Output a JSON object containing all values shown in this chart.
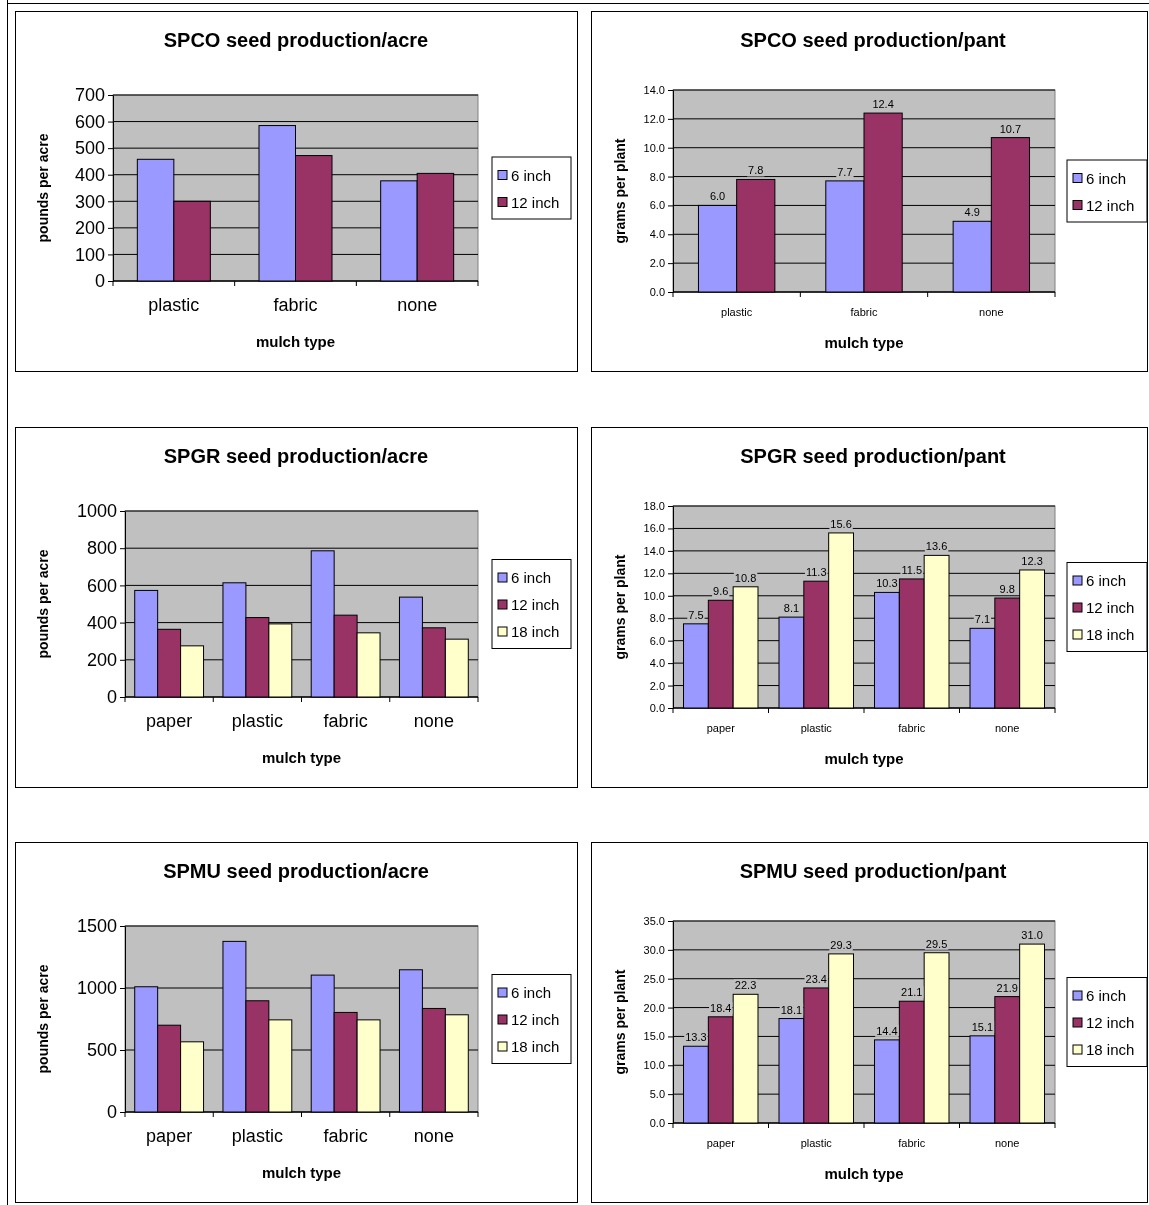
{
  "chart_data": [
    {
      "type": "bar",
      "title": "SPCO seed production/acre",
      "xlabel": "mulch type",
      "ylabel": "pounds per acre",
      "categories": [
        "plastic",
        "fabric",
        "none"
      ],
      "series": [
        {
          "name": "6 inch",
          "color": "#9999ff",
          "values": [
            458,
            585,
            377
          ]
        },
        {
          "name": "12 inch",
          "color": "#993366",
          "values": [
            300,
            472,
            405
          ]
        }
      ],
      "ylim": [
        0,
        700
      ],
      "yticks": [
        0,
        100,
        200,
        300,
        400,
        500,
        600,
        700
      ],
      "grid": "y",
      "legend": "right"
    },
    {
      "type": "bar",
      "title": "SPCO seed production/pant",
      "xlabel": "mulch type",
      "ylabel": "grams per plant",
      "categories": [
        "plastic",
        "fabric",
        "none"
      ],
      "series": [
        {
          "name": "6 inch",
          "color": "#9999ff",
          "values": [
            6.0,
            7.7,
            4.9
          ],
          "value_labels": [
            "6.0",
            "7.7",
            "4.9"
          ]
        },
        {
          "name": "12 inch",
          "color": "#993366",
          "values": [
            7.8,
            12.4,
            10.7
          ],
          "value_labels": [
            "7.8",
            "12.4",
            "10.7"
          ]
        }
      ],
      "ylim": [
        0,
        14
      ],
      "yticks": [
        {
          "value": 0,
          "label": "0.0"
        },
        {
          "value": 2,
          "label": "2.0"
        },
        {
          "value": 4,
          "label": "4.0"
        },
        {
          "value": 6,
          "label": "6.0"
        },
        {
          "value": 8,
          "label": "8.0"
        },
        {
          "value": 10,
          "label": "10.0"
        },
        {
          "value": 12,
          "label": "12.0"
        },
        {
          "value": 14,
          "label": "14.0"
        }
      ],
      "grid": "y",
      "legend": "right"
    },
    {
      "type": "bar",
      "title": "SPGR seed production/acre",
      "xlabel": "mulch type",
      "ylabel": "pounds per acre",
      "categories": [
        "paper",
        "plastic",
        "fabric",
        "none"
      ],
      "series": [
        {
          "name": "6 inch",
          "color": "#9999ff",
          "values": [
            573,
            614,
            786,
            537
          ]
        },
        {
          "name": "12 inch",
          "color": "#993366",
          "values": [
            364,
            427,
            440,
            372
          ]
        },
        {
          "name": "18 inch",
          "color": "#ffffcc",
          "values": [
            275,
            393,
            345,
            311
          ]
        }
      ],
      "ylim": [
        0,
        1000
      ],
      "yticks": [
        0,
        200,
        400,
        600,
        800,
        1000
      ],
      "grid": "y",
      "legend": "right"
    },
    {
      "type": "bar",
      "title": "SPGR seed production/pant",
      "xlabel": "mulch type",
      "ylabel": "grams per plant",
      "categories": [
        "paper",
        "plastic",
        "fabric",
        "none"
      ],
      "series": [
        {
          "name": "6 inch",
          "color": "#9999ff",
          "values": [
            7.5,
            8.1,
            10.3,
            7.1
          ],
          "value_labels": [
            "7.5",
            "8.1",
            "10.3",
            "7.1"
          ]
        },
        {
          "name": "12 inch",
          "color": "#993366",
          "values": [
            9.6,
            11.3,
            11.5,
            9.8
          ],
          "value_labels": [
            "9.6",
            "11.3",
            "11.5",
            "9.8"
          ]
        },
        {
          "name": "18 inch",
          "color": "#ffffcc",
          "values": [
            10.8,
            15.6,
            13.6,
            12.3
          ],
          "value_labels": [
            "10.8",
            "15.6",
            "13.6",
            "12.3"
          ]
        }
      ],
      "ylim": [
        0,
        18
      ],
      "yticks": [
        {
          "value": 0,
          "label": "0.0"
        },
        {
          "value": 2,
          "label": "2.0"
        },
        {
          "value": 4,
          "label": "4.0"
        },
        {
          "value": 6,
          "label": "6.0"
        },
        {
          "value": 8,
          "label": "8.0"
        },
        {
          "value": 10,
          "label": "10.0"
        },
        {
          "value": 12,
          "label": "12.0"
        },
        {
          "value": 14,
          "label": "14.0"
        },
        {
          "value": 16,
          "label": "16.0"
        },
        {
          "value": 18,
          "label": "18.0"
        }
      ],
      "grid": "y",
      "legend": "right"
    },
    {
      "type": "bar",
      "title": "SPMU seed production/acre",
      "xlabel": "mulch type",
      "ylabel": "pounds per acre",
      "categories": [
        "paper",
        "plastic",
        "fabric",
        "none"
      ],
      "series": [
        {
          "name": "6 inch",
          "color": "#9999ff",
          "values": [
            1010,
            1376,
            1104,
            1147
          ]
        },
        {
          "name": "12 inch",
          "color": "#993366",
          "values": [
            700,
            897,
            803,
            835
          ]
        },
        {
          "name": "18 inch",
          "color": "#ffffcc",
          "values": [
            566,
            743,
            743,
            784
          ]
        }
      ],
      "ylim": [
        0,
        1500
      ],
      "yticks": [
        0,
        500,
        1000,
        1500
      ],
      "grid": "y",
      "legend": "right"
    },
    {
      "type": "bar",
      "title": "SPMU seed production/pant",
      "xlabel": "mulch type",
      "ylabel": "grams per plant",
      "categories": [
        "paper",
        "plastic",
        "fabric",
        "none"
      ],
      "series": [
        {
          "name": "6 inch",
          "color": "#9999ff",
          "values": [
            13.3,
            18.1,
            14.4,
            15.1
          ],
          "value_labels": [
            "13.3",
            "18.1",
            "14.4",
            "15.1"
          ]
        },
        {
          "name": "12 inch",
          "color": "#993366",
          "values": [
            18.4,
            23.4,
            21.1,
            21.9
          ],
          "value_labels": [
            "18.4",
            "23.4",
            "21.1",
            "21.9"
          ]
        },
        {
          "name": "18 inch",
          "color": "#ffffcc",
          "values": [
            22.3,
            29.3,
            29.5,
            31.0
          ],
          "value_labels": [
            "22.3",
            "29.3",
            "29.5",
            "31.0"
          ]
        }
      ],
      "ylim": [
        0,
        35
      ],
      "yticks": [
        {
          "value": 0,
          "label": "0.0"
        },
        {
          "value": 5,
          "label": "5.0"
        },
        {
          "value": 10,
          "label": "10.0"
        },
        {
          "value": 15,
          "label": "15.0"
        },
        {
          "value": 20,
          "label": "20.0"
        },
        {
          "value": 25,
          "label": "25.0"
        },
        {
          "value": 30,
          "label": "30.0"
        },
        {
          "value": 35,
          "label": "35.0"
        }
      ],
      "grid": "y",
      "legend": "right"
    }
  ]
}
